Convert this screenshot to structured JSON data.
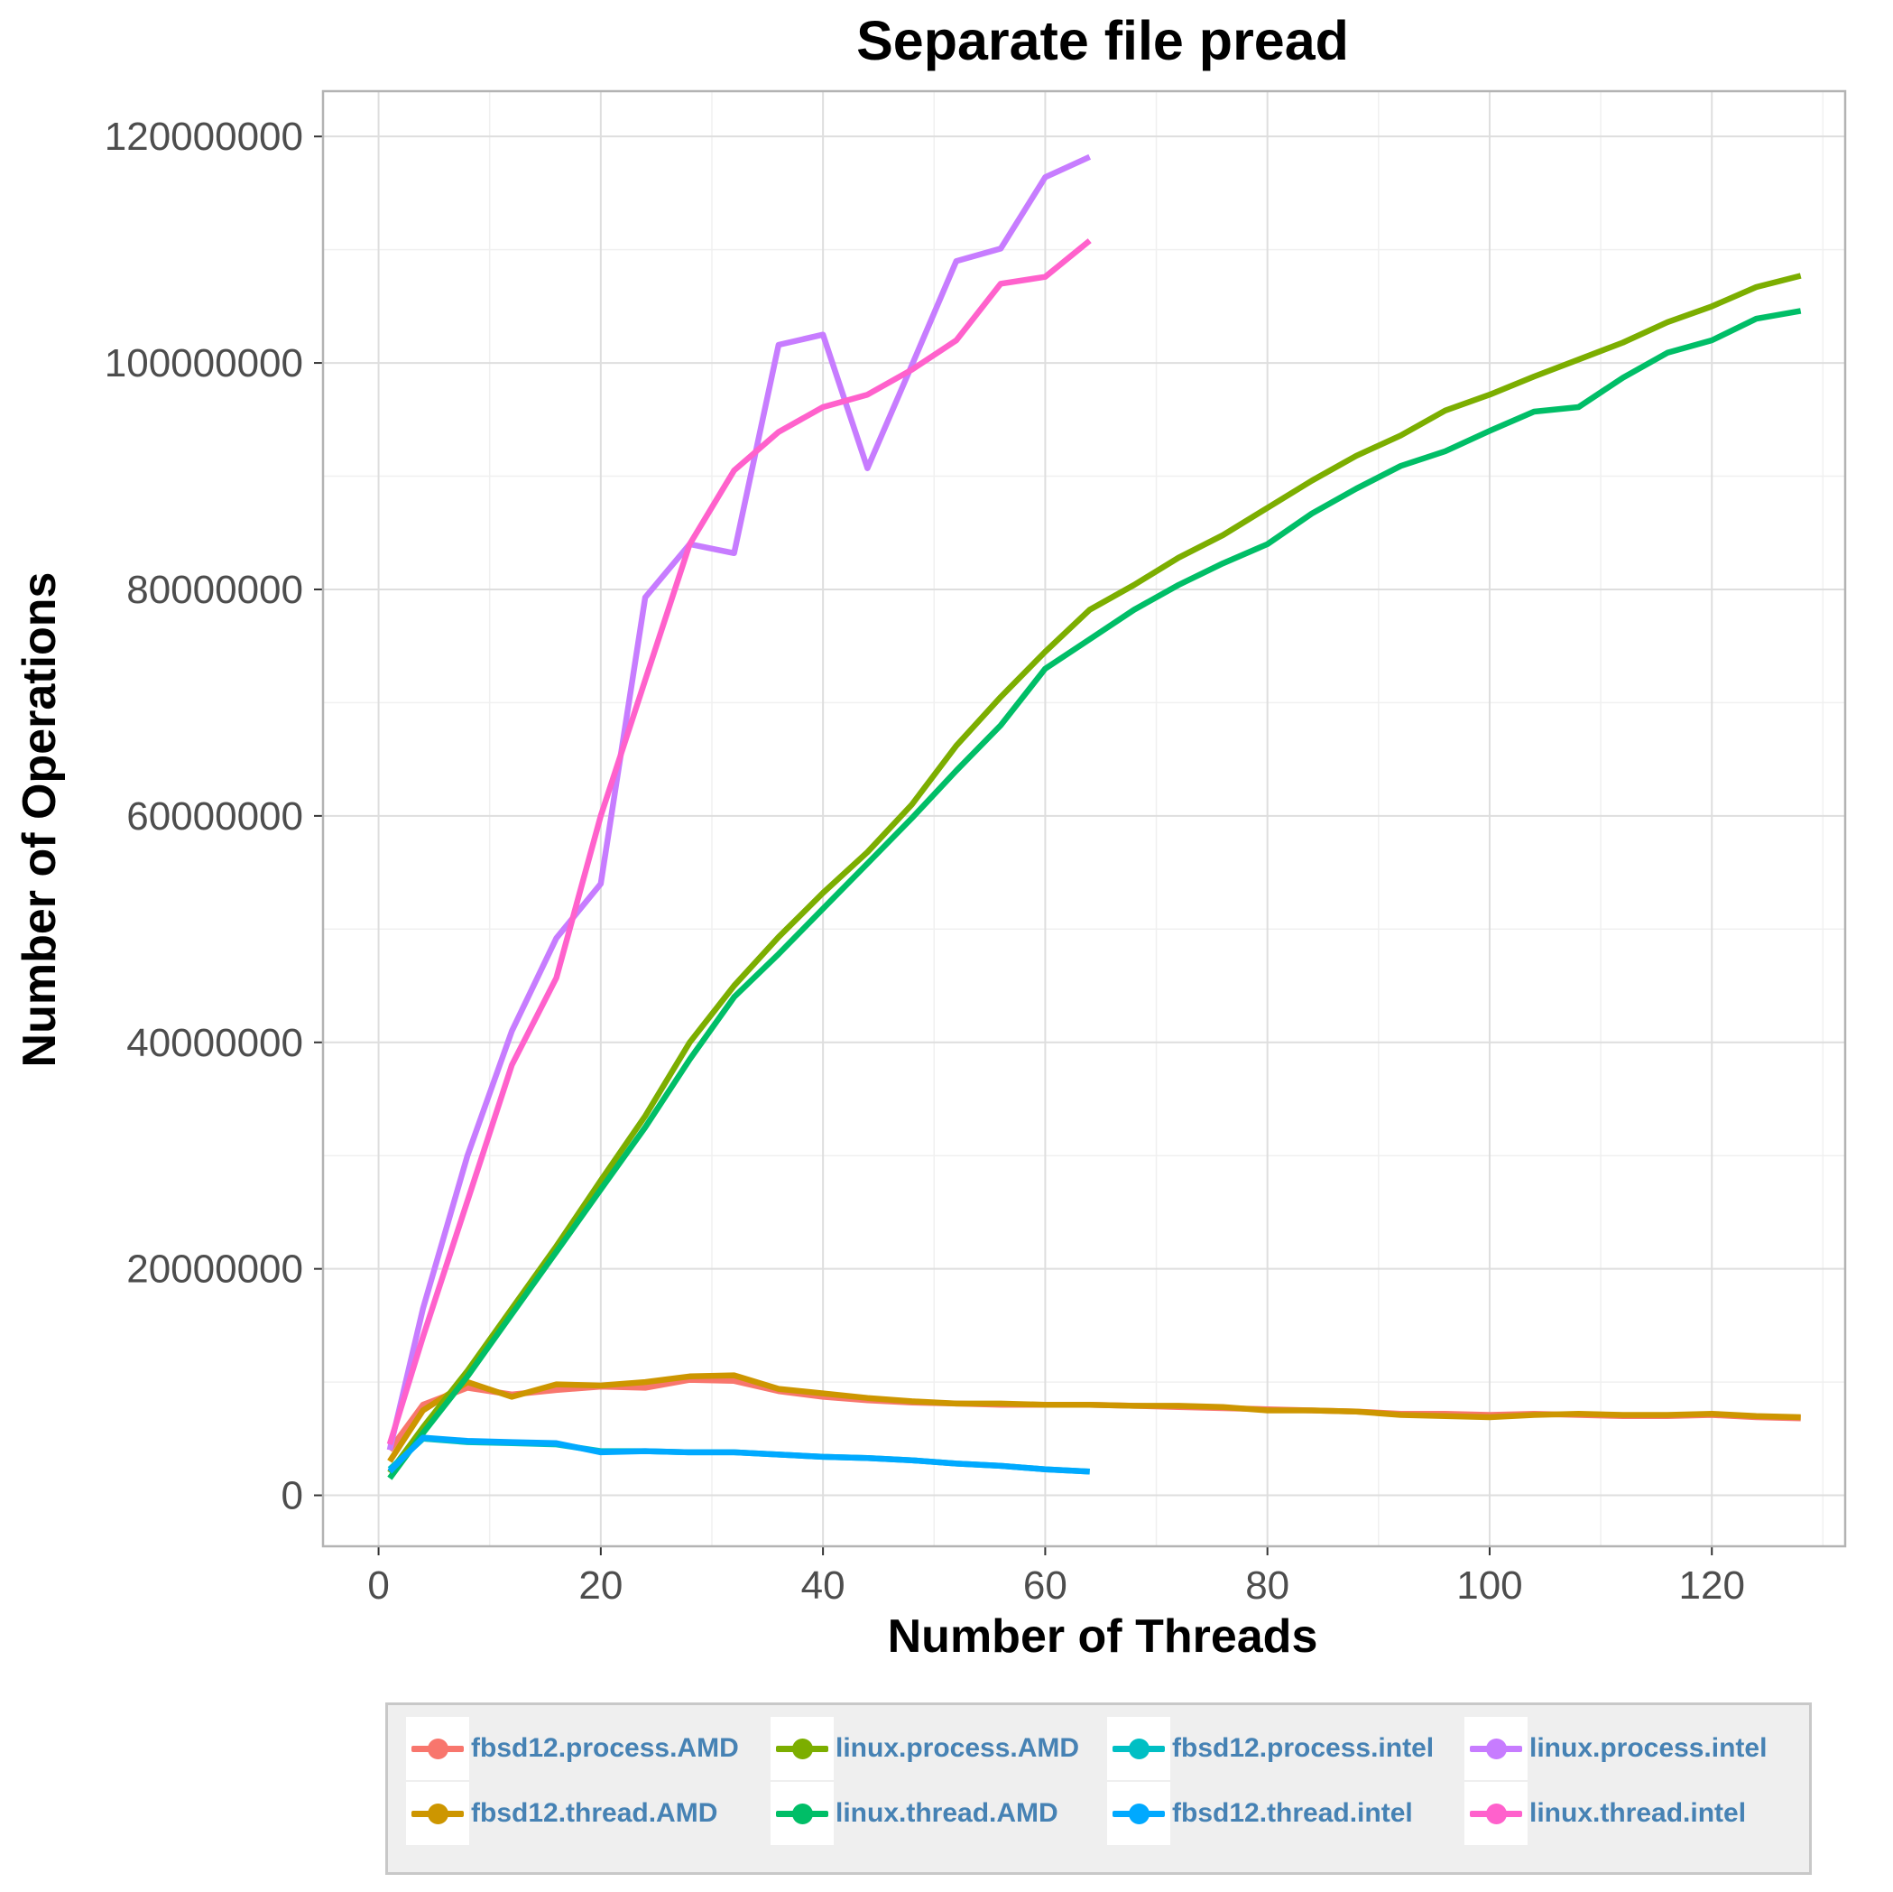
{
  "chart_data": {
    "type": "line",
    "title": "Separate file pread",
    "xlabel": "Number of Threads",
    "ylabel": "Number of Operations",
    "xlim": [
      -5,
      132
    ],
    "ylim": [
      -4500000,
      124000000
    ],
    "x_ticks": [
      0,
      20,
      40,
      60,
      80,
      100,
      120
    ],
    "x_tick_labels": [
      "0",
      "20",
      "40",
      "60",
      "80",
      "100",
      "120"
    ],
    "y_ticks": [
      0,
      20000000,
      40000000,
      60000000,
      80000000,
      100000000,
      120000000
    ],
    "y_tick_labels": [
      "0",
      "20000000",
      "40000000",
      "60000000",
      "80000000",
      "100000000",
      "120000000"
    ],
    "grid": true,
    "legend_position": "bottom",
    "series": [
      {
        "name": "fbsd12.process.AMD",
        "color": "#f8766d",
        "x": [
          1,
          4,
          8,
          12,
          16,
          20,
          24,
          28,
          32,
          36,
          40,
          44,
          48,
          52,
          56,
          60,
          64,
          68,
          72,
          76,
          80,
          84,
          88,
          92,
          96,
          100,
          104,
          108,
          112,
          116,
          120,
          124,
          128
        ],
        "y": [
          4000000,
          8000000,
          9500000,
          8900000,
          9300000,
          9600000,
          9500000,
          10200000,
          10100000,
          9200000,
          8700000,
          8400000,
          8200000,
          8100000,
          8000000,
          8000000,
          8000000,
          7900000,
          7800000,
          7700000,
          7600000,
          7500000,
          7400000,
          7200000,
          7200000,
          7100000,
          7200000,
          7100000,
          7000000,
          7000000,
          7100000,
          6900000,
          6800000
        ]
      },
      {
        "name": "fbsd12.thread.AMD",
        "color": "#cd9600",
        "x": [
          1,
          4,
          8,
          12,
          16,
          20,
          24,
          28,
          32,
          36,
          40,
          44,
          48,
          52,
          56,
          60,
          64,
          68,
          72,
          76,
          80,
          84,
          88,
          92,
          96,
          100,
          104,
          108,
          112,
          116,
          120,
          124,
          128
        ],
        "y": [
          3000000,
          7500000,
          10000000,
          8700000,
          9800000,
          9700000,
          10000000,
          10500000,
          10600000,
          9400000,
          9000000,
          8600000,
          8300000,
          8100000,
          8100000,
          8000000,
          8000000,
          7900000,
          7900000,
          7800000,
          7500000,
          7500000,
          7400000,
          7100000,
          7000000,
          6900000,
          7100000,
          7200000,
          7100000,
          7100000,
          7200000,
          7000000,
          6900000
        ]
      },
      {
        "name": "linux.process.AMD",
        "color": "#7cae00",
        "x": [
          1,
          4,
          8,
          12,
          16,
          20,
          24,
          28,
          32,
          36,
          40,
          44,
          48,
          52,
          56,
          60,
          64,
          68,
          72,
          76,
          80,
          84,
          88,
          92,
          96,
          100,
          104,
          108,
          112,
          116,
          120,
          124,
          128
        ],
        "y": [
          2000000,
          6000000,
          11000000,
          16500000,
          22000000,
          27800000,
          33500000,
          40000000,
          45000000,
          49300000,
          53200000,
          56800000,
          61000000,
          66200000,
          70500000,
          74500000,
          78200000,
          80400000,
          82800000,
          84800000,
          87200000,
          89600000,
          91800000,
          93600000,
          95800000,
          97200000,
          98800000,
          100300000,
          101800000,
          103600000,
          105000000,
          106700000,
          107700000
        ]
      },
      {
        "name": "linux.thread.AMD",
        "color": "#00be67",
        "x": [
          1,
          4,
          8,
          12,
          16,
          20,
          24,
          28,
          32,
          36,
          40,
          44,
          48,
          52,
          56,
          60,
          64,
          68,
          72,
          76,
          80,
          84,
          88,
          92,
          96,
          100,
          104,
          108,
          112,
          116,
          120,
          124,
          128
        ],
        "y": [
          1500000,
          5500000,
          10500000,
          16000000,
          21500000,
          27000000,
          32500000,
          38500000,
          44000000,
          47800000,
          51800000,
          55800000,
          59800000,
          64000000,
          68000000,
          73000000,
          75600000,
          78200000,
          80400000,
          82300000,
          84000000,
          86700000,
          88900000,
          90900000,
          92200000,
          94000000,
          95700000,
          96100000,
          98700000,
          100900000,
          102000000,
          103900000,
          104600000
        ]
      },
      {
        "name": "fbsd12.process.intel",
        "color": "#00bfc4",
        "x": [
          1,
          4,
          8,
          12,
          16,
          20,
          24,
          28,
          32,
          36,
          40,
          44,
          48,
          52,
          56,
          60,
          64
        ],
        "y": [
          2300000,
          5000000,
          4700000,
          4600000,
          4500000,
          3900000,
          3900000,
          3800000,
          3800000,
          3600000,
          3400000,
          3300000,
          3100000,
          2800000,
          2600000,
          2300000,
          2100000
        ]
      },
      {
        "name": "fbsd12.thread.intel",
        "color": "#00a9ff",
        "x": [
          1,
          4,
          8,
          12,
          16,
          20,
          24,
          28,
          32,
          36,
          40,
          44,
          48,
          52,
          56,
          60,
          64
        ],
        "y": [
          2100000,
          5100000,
          4800000,
          4700000,
          4600000,
          3800000,
          3900000,
          3800000,
          3800000,
          3600000,
          3400000,
          3300000,
          3100000,
          2800000,
          2600000,
          2300000,
          2100000
        ]
      },
      {
        "name": "linux.process.intel",
        "color": "#c77cff",
        "x": [
          1,
          4,
          8,
          12,
          16,
          20,
          24,
          28,
          32,
          36,
          40,
          44,
          48,
          52,
          56,
          60,
          64
        ],
        "y": [
          4000000,
          16500000,
          30000000,
          41000000,
          49200000,
          54000000,
          79300000,
          84000000,
          83200000,
          101600000,
          102500000,
          90700000,
          99800000,
          109000000,
          110100000,
          116400000,
          118200000
        ]
      },
      {
        "name": "linux.thread.intel",
        "color": "#ff61cc",
        "x": [
          1,
          4,
          8,
          12,
          16,
          20,
          24,
          28,
          32,
          36,
          40,
          44,
          48,
          52,
          56,
          60,
          64
        ],
        "y": [
          4500000,
          14000000,
          26000000,
          38000000,
          45700000,
          60000000,
          72000000,
          84000000,
          90500000,
          93900000,
          96100000,
          97200000,
          99400000,
          102000000,
          107000000,
          107600000,
          110800000
        ]
      }
    ]
  },
  "legend_rows": [
    [
      0,
      2,
      4,
      6
    ],
    [
      1,
      3,
      5,
      7
    ]
  ]
}
